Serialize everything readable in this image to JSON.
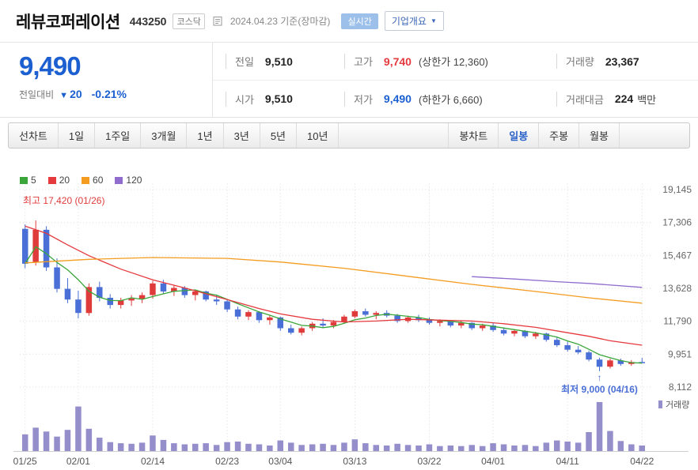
{
  "header": {
    "title": "레뷰코퍼레이션",
    "code": "443250",
    "market": "코스닥",
    "date_text": "2024.04.23 기준(장마감)",
    "realtime_badge": "실시간",
    "company_overview_button": "기업개요"
  },
  "icons": {
    "chevron_down": "▼"
  },
  "summary": {
    "price": "9,490",
    "change_label": "전일대비",
    "change_dir": "▼",
    "change_value": "20",
    "change_pct": "-0.21%",
    "prev_label": "전일",
    "prev_value": "9,510",
    "high_label": "고가",
    "high_value": "9,740",
    "upper_limit_text": "(상한가 12,360)",
    "volume_label": "거래량",
    "volume_value": "23,367",
    "open_label": "시가",
    "open_value": "9,510",
    "low_label": "저가",
    "low_value": "9,490",
    "lower_limit_text": "(하한가 6,660)",
    "value_label": "거래대금",
    "value_value": "224",
    "value_unit": "백만"
  },
  "toolbar": {
    "left": [
      "선차트",
      "1일",
      "1주일",
      "3개월",
      "1년",
      "3년",
      "5년",
      "10년"
    ],
    "right": [
      "봉차트",
      "일봉",
      "주봉",
      "월봉"
    ],
    "selected": "일봉"
  },
  "chart_data": {
    "type": "candlestick",
    "title": "레뷰코퍼레이션 일봉 차트",
    "y_ticks": [
      19145,
      17306,
      15467,
      13628,
      11790,
      9951,
      8112
    ],
    "y_tick_labels": [
      "19,145",
      "17,306",
      "15,467",
      "13,628",
      "11,790",
      "9,951",
      "8,112"
    ],
    "y_range": [
      8112,
      19145
    ],
    "x_tick_labels": [
      "01/25",
      "02/01",
      "02/14",
      "02/23",
      "03/04",
      "03/13",
      "03/22",
      "04/01",
      "04/11",
      "04/22"
    ],
    "x_tick_indices": [
      0,
      5,
      12,
      19,
      24,
      31,
      38,
      44,
      51,
      58
    ],
    "legend": [
      {
        "label": "5",
        "color": "#3aa63a"
      },
      {
        "label": "20",
        "color": "#e5393e"
      },
      {
        "label": "60",
        "color": "#f39c1f"
      },
      {
        "label": "120",
        "color": "#8f6cce"
      }
    ],
    "volume_legend": "거래량",
    "annotations": {
      "high": {
        "text": "최고 17,420 (01/26)",
        "value": 17420,
        "date": "01/26",
        "index": 1
      },
      "low": {
        "text": "최저 9,000 (04/16)",
        "value": 9000,
        "date": "04/16",
        "index": 54,
        "arrow": "↑"
      }
    },
    "colors": {
      "up": "#e03b3b",
      "down": "#4a6fd6",
      "volume": "#948ecb",
      "grid": "#dcdcdc"
    },
    "candles": [
      [
        "01/25",
        16950,
        17200,
        14750,
        15000,
        300
      ],
      [
        "01/26",
        15100,
        17420,
        14900,
        16900,
        420
      ],
      [
        "01/29",
        16900,
        17100,
        14600,
        14800,
        350
      ],
      [
        "01/30",
        14800,
        15300,
        13400,
        13600,
        260
      ],
      [
        "01/31",
        13600,
        14200,
        12800,
        13000,
        380
      ],
      [
        "02/01",
        13000,
        13500,
        11950,
        12250,
        800
      ],
      [
        "02/02",
        12250,
        13900,
        12100,
        13700,
        400
      ],
      [
        "02/05",
        13700,
        14000,
        12900,
        13100,
        240
      ],
      [
        "02/06",
        13100,
        13300,
        12500,
        12700,
        160
      ],
      [
        "02/07",
        12700,
        13100,
        12500,
        12950,
        140
      ],
      [
        "02/08",
        12950,
        13250,
        12650,
        13050,
        130
      ],
      [
        "02/13",
        13050,
        13400,
        12800,
        13250,
        150
      ],
      [
        "02/14",
        13250,
        14050,
        13050,
        13900,
        280
      ],
      [
        "02/15",
        13900,
        14100,
        13300,
        13450,
        200
      ],
      [
        "02/16",
        13450,
        13800,
        13200,
        13650,
        140
      ],
      [
        "02/19",
        13650,
        13750,
        13100,
        13250,
        120
      ],
      [
        "02/20",
        13250,
        13550,
        12950,
        13450,
        130
      ],
      [
        "02/21",
        13450,
        13500,
        12900,
        13000,
        140
      ],
      [
        "02/22",
        13000,
        13250,
        12700,
        12900,
        110
      ],
      [
        "02/23",
        12900,
        13000,
        12300,
        12450,
        160
      ],
      [
        "02/26",
        12450,
        12600,
        11900,
        12050,
        170
      ],
      [
        "02/27",
        12050,
        12400,
        11850,
        12300,
        130
      ],
      [
        "02/28",
        12300,
        12350,
        11700,
        11850,
        120
      ],
      [
        "02/29",
        11850,
        12100,
        11600,
        12000,
        100
      ],
      [
        "03/04",
        12000,
        12050,
        11250,
        11400,
        190
      ],
      [
        "03/05",
        11400,
        11600,
        11050,
        11150,
        150
      ],
      [
        "03/06",
        11150,
        11500,
        11000,
        11400,
        110
      ],
      [
        "03/07",
        11400,
        11750,
        11250,
        11650,
        120
      ],
      [
        "03/08",
        11650,
        11950,
        11450,
        11550,
        130
      ],
      [
        "03/11",
        11550,
        11850,
        11400,
        11750,
        110
      ],
      [
        "03/12",
        11750,
        12150,
        11650,
        12050,
        150
      ],
      [
        "03/13",
        12050,
        12450,
        11950,
        12350,
        210
      ],
      [
        "03/14",
        12350,
        12500,
        12050,
        12150,
        140
      ],
      [
        "03/15",
        12150,
        12350,
        11900,
        12250,
        110
      ],
      [
        "03/18",
        12250,
        12400,
        12000,
        12100,
        100
      ],
      [
        "03/19",
        12100,
        12200,
        11700,
        11800,
        130
      ],
      [
        "03/20",
        11800,
        12100,
        11700,
        12000,
        110
      ],
      [
        "03/21",
        12000,
        12150,
        11750,
        11850,
        100
      ],
      [
        "03/22",
        11850,
        12000,
        11600,
        11700,
        120
      ],
      [
        "03/25",
        11700,
        11900,
        11500,
        11800,
        90
      ],
      [
        "03/26",
        11800,
        11850,
        11450,
        11550,
        100
      ],
      [
        "03/27",
        11550,
        11800,
        11400,
        11700,
        90
      ],
      [
        "03/28",
        11700,
        11750,
        11300,
        11400,
        110
      ],
      [
        "03/29",
        11400,
        11650,
        11250,
        11550,
        90
      ],
      [
        "04/01",
        11550,
        11700,
        11200,
        11300,
        140
      ],
      [
        "04/02",
        11300,
        11450,
        11000,
        11100,
        120
      ],
      [
        "04/03",
        11100,
        11350,
        10950,
        11250,
        100
      ],
      [
        "04/04",
        11250,
        11300,
        10850,
        10950,
        110
      ],
      [
        "04/05",
        10950,
        11200,
        10800,
        11100,
        90
      ],
      [
        "04/08",
        11100,
        11150,
        10650,
        10750,
        150
      ],
      [
        "04/09",
        10750,
        10900,
        10350,
        10450,
        190
      ],
      [
        "04/11",
        10450,
        10650,
        10100,
        10200,
        170
      ],
      [
        "04/12",
        10200,
        10400,
        9950,
        10050,
        150
      ],
      [
        "04/15",
        10050,
        10150,
        9550,
        9650,
        340
      ],
      [
        "04/16",
        9650,
        9750,
        9000,
        9250,
        880
      ],
      [
        "04/17",
        9250,
        9700,
        9150,
        9600,
        360
      ],
      [
        "04/18",
        9600,
        9700,
        9300,
        9400,
        180
      ],
      [
        "04/19",
        9400,
        9620,
        9300,
        9510,
        120
      ],
      [
        "04/22",
        9510,
        9740,
        9490,
        9490,
        100
      ]
    ],
    "ma_lines": [
      {
        "name": "ma20",
        "color": "#e5393e",
        "points": [
          [
            0,
            17100
          ],
          [
            2,
            16700
          ],
          [
            4,
            16050
          ],
          [
            6,
            15450
          ],
          [
            9,
            14700
          ],
          [
            12,
            14100
          ],
          [
            15,
            13650
          ],
          [
            19,
            13000
          ],
          [
            22,
            12500
          ],
          [
            24,
            12200
          ],
          [
            27,
            11900
          ],
          [
            30,
            11750
          ],
          [
            33,
            11800
          ],
          [
            36,
            11900
          ],
          [
            39,
            11850
          ],
          [
            42,
            11800
          ],
          [
            45,
            11650
          ],
          [
            48,
            11450
          ],
          [
            51,
            11150
          ],
          [
            53,
            10950
          ],
          [
            55,
            10700
          ],
          [
            58,
            10450
          ]
        ]
      },
      {
        "name": "ma60",
        "color": "#f39c1f",
        "points": [
          [
            0,
            15050
          ],
          [
            6,
            15250
          ],
          [
            12,
            15350
          ],
          [
            19,
            15300
          ],
          [
            24,
            15100
          ],
          [
            30,
            14750
          ],
          [
            36,
            14300
          ],
          [
            42,
            13850
          ],
          [
            48,
            13450
          ],
          [
            53,
            13100
          ],
          [
            58,
            12800
          ]
        ]
      },
      {
        "name": "ma120",
        "color": "#8f6cce",
        "points": [
          [
            42,
            14280
          ],
          [
            46,
            14150
          ],
          [
            50,
            14000
          ],
          [
            53,
            13900
          ],
          [
            58,
            13680
          ]
        ]
      }
    ]
  }
}
